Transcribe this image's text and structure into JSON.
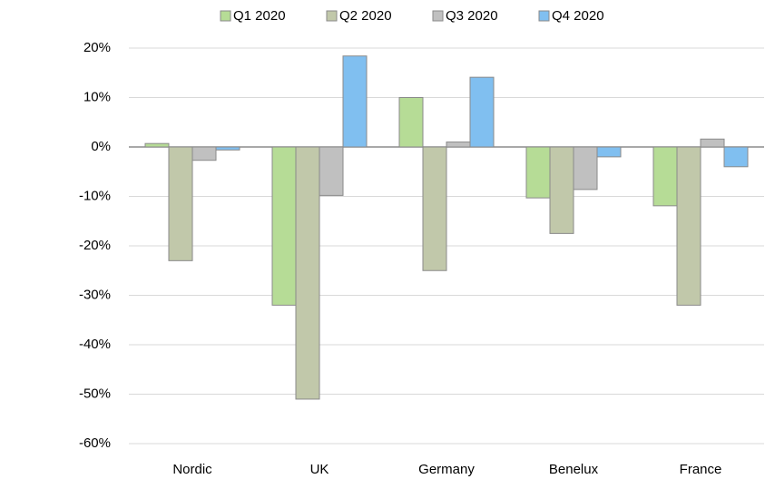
{
  "chart_data": {
    "type": "bar",
    "categories": [
      "Nordic",
      "UK",
      "Germany",
      "Benelux",
      "France"
    ],
    "series": [
      {
        "name": "Q1 2020",
        "color": "#b6dc96",
        "values": [
          0.7,
          -32,
          10,
          -10.3,
          -11.9
        ]
      },
      {
        "name": "Q2 2020",
        "color": "#c1c8aa",
        "values": [
          -23,
          -51,
          -25,
          -17.5,
          -32
        ]
      },
      {
        "name": "Q3 2020",
        "color": "#c0c0c0",
        "values": [
          -2.7,
          -9.8,
          1,
          -8.6,
          1.6
        ]
      },
      {
        "name": "Q4 2020",
        "color": "#80bff0",
        "values": [
          -0.6,
          18.4,
          14.1,
          -2,
          -4
        ]
      }
    ],
    "ylim": [
      -60,
      20
    ],
    "yticks": [
      {
        "value": 20,
        "label": "20%"
      },
      {
        "value": 10,
        "label": "10%"
      },
      {
        "value": 0,
        "label": "0%"
      },
      {
        "value": -10,
        "label": "-10%"
      },
      {
        "value": -20,
        "label": "-20%"
      },
      {
        "value": -30,
        "label": "-30%"
      },
      {
        "value": -40,
        "label": "-40%"
      },
      {
        "value": -50,
        "label": "-50%"
      },
      {
        "value": -60,
        "label": "-60%"
      }
    ],
    "grid": true,
    "legend": "top"
  }
}
